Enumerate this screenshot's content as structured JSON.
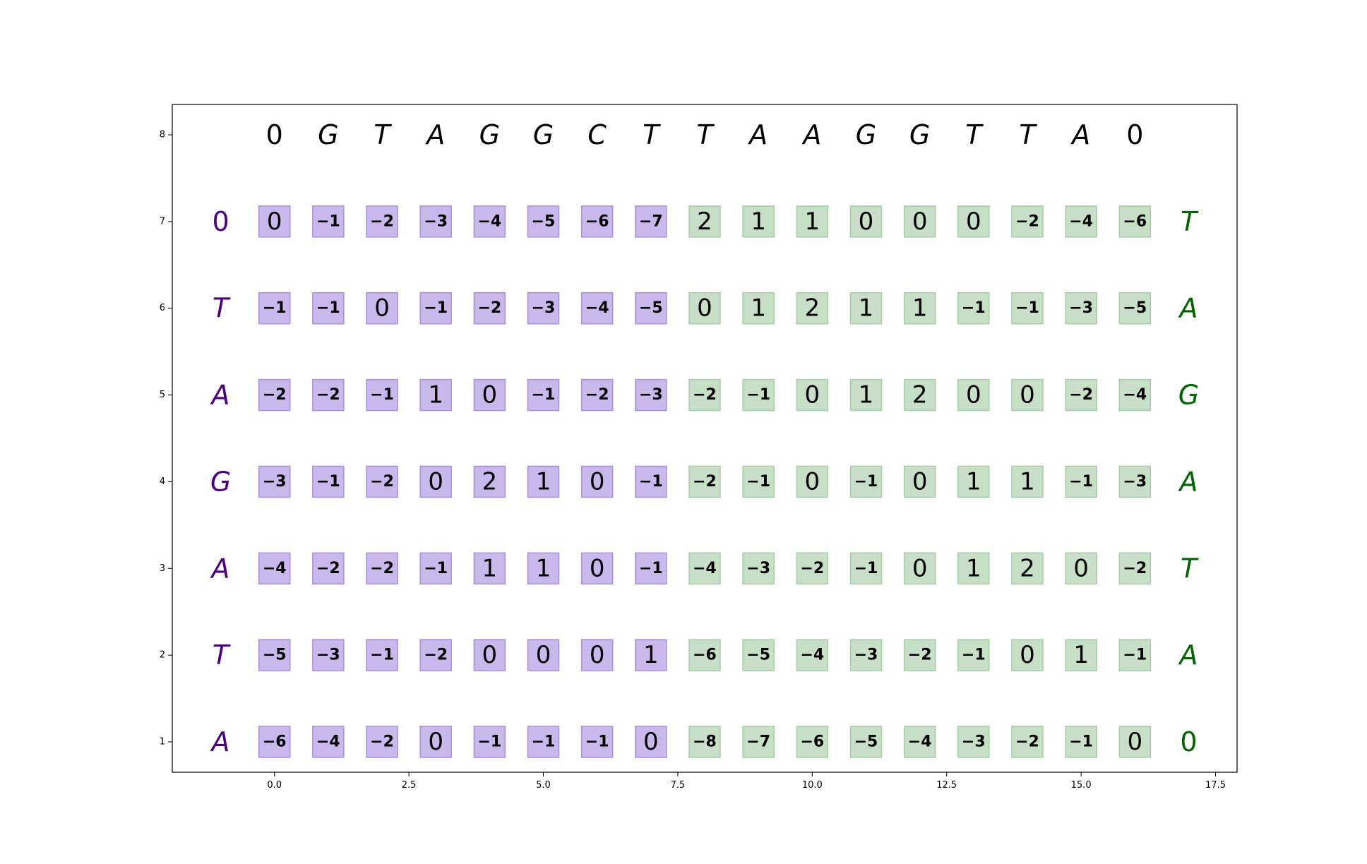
{
  "chart_data": {
    "type": "heatmap",
    "title": "",
    "xlabel": "",
    "ylabel": "",
    "xlim": [
      -1.9,
      17.9
    ],
    "ylim": [
      0.65,
      8.35
    ],
    "x_ticks": [
      0.0,
      2.5,
      5.0,
      7.5,
      10.0,
      12.5,
      15.0,
      17.5
    ],
    "x_tick_labels": [
      "0.0",
      "2.5",
      "5.0",
      "7.5",
      "10.0",
      "12.5",
      "15.0",
      "17.5"
    ],
    "y_ticks": [
      1,
      2,
      3,
      4,
      5,
      6,
      7,
      8
    ],
    "y_tick_labels": [
      "1",
      "2",
      "3",
      "4",
      "5",
      "6",
      "7",
      "8"
    ],
    "grid": false,
    "column_headers": [
      "0",
      "G",
      "T",
      "A",
      "G",
      "G",
      "C",
      "T",
      "T",
      "A",
      "A",
      "G",
      "G",
      "T",
      "T",
      "A",
      "0"
    ],
    "column_header_styles": [
      "normal",
      "italic",
      "italic",
      "italic",
      "italic",
      "italic",
      "italic",
      "italic",
      "italic",
      "italic",
      "italic",
      "italic",
      "italic",
      "italic",
      "italic",
      "italic",
      "normal"
    ],
    "left_labels": [
      "0",
      "T",
      "A",
      "G",
      "A",
      "T",
      "A"
    ],
    "left_label_styles": [
      "normal",
      "italic",
      "italic",
      "italic",
      "italic",
      "italic",
      "italic"
    ],
    "right_labels": [
      "T",
      "A",
      "G",
      "A",
      "T",
      "A",
      "0"
    ],
    "right_label_styles": [
      "italic",
      "italic",
      "italic",
      "italic",
      "italic",
      "italic",
      "normal"
    ],
    "left_group_columns": 8,
    "colors": {
      "left_fill": "#c8b8ec",
      "left_edge": "#a890dd",
      "right_fill": "#c7dfc6",
      "right_edge": "#a8cca8",
      "left_label_color": "#4b0082",
      "right_label_color": "#006400"
    },
    "rows": [
      [
        0,
        -1,
        -2,
        -3,
        -4,
        -5,
        -6,
        -7,
        2,
        1,
        1,
        0,
        0,
        0,
        -2,
        -4,
        -6
      ],
      [
        -1,
        -1,
        0,
        -1,
        -2,
        -3,
        -4,
        -5,
        0,
        1,
        2,
        1,
        1,
        -1,
        -1,
        -3,
        -5
      ],
      [
        -2,
        -2,
        -1,
        1,
        0,
        -1,
        -2,
        -3,
        -2,
        -1,
        0,
        1,
        2,
        0,
        0,
        -2,
        -4
      ],
      [
        -3,
        -1,
        -2,
        0,
        2,
        1,
        0,
        -1,
        -2,
        -1,
        0,
        -1,
        0,
        1,
        1,
        -1,
        -3
      ],
      [
        -4,
        -2,
        -2,
        -1,
        1,
        1,
        0,
        -1,
        -4,
        -3,
        -2,
        -1,
        0,
        1,
        2,
        0,
        -2
      ],
      [
        -5,
        -3,
        -1,
        -2,
        0,
        0,
        0,
        1,
        -6,
        -5,
        -4,
        -3,
        -2,
        -1,
        0,
        1,
        -1
      ],
      [
        -6,
        -4,
        -2,
        0,
        -1,
        -1,
        -1,
        0,
        -8,
        -7,
        -6,
        -5,
        -4,
        -3,
        -2,
        -1,
        0
      ]
    ]
  }
}
